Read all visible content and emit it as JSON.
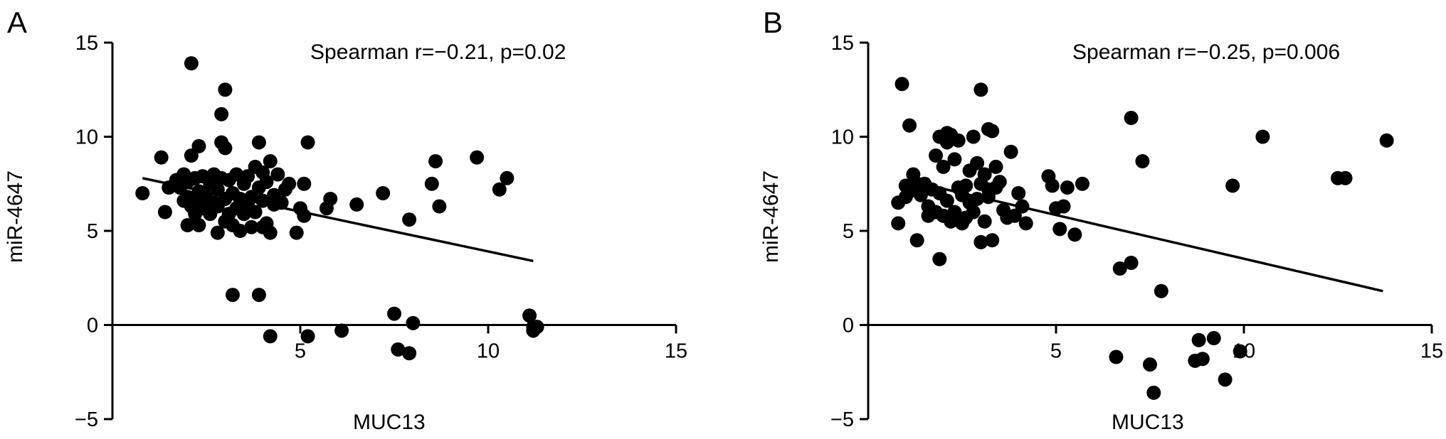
{
  "chart_data": [
    {
      "type": "scatter",
      "panel_label": "A",
      "annotation": "Spearman r=−0.21, p=0.02",
      "xlabel": "MUC13",
      "ylabel": "miR-4647",
      "xlim": [
        0,
        15
      ],
      "ylim": [
        -5,
        15
      ],
      "xticks": [
        5,
        10,
        15
      ],
      "yticks": [
        -5,
        0,
        5,
        10,
        15
      ],
      "xtick_labels": [
        "5",
        "10",
        "15"
      ],
      "ytick_labels": [
        "−5",
        "0",
        "5",
        "10",
        "15"
      ],
      "regression_line": {
        "x": [
          0.8,
          11.2
        ],
        "y": [
          7.8,
          3.4
        ]
      },
      "points": {
        "x": [
          0.8,
          1.3,
          1.4,
          1.5,
          1.7,
          1.8,
          1.9,
          1.9,
          2.0,
          2.0,
          2.0,
          2.1,
          2.1,
          2.2,
          2.2,
          2.2,
          2.3,
          2.3,
          2.3,
          2.4,
          2.4,
          2.5,
          2.5,
          2.6,
          2.6,
          2.7,
          2.7,
          2.8,
          2.8,
          2.8,
          2.9,
          2.9,
          3.0,
          3.0,
          3.0,
          3.1,
          3.1,
          3.2,
          3.2,
          3.3,
          3.3,
          3.4,
          3.4,
          3.5,
          3.5,
          3.6,
          3.6,
          3.7,
          3.7,
          3.8,
          3.8,
          3.9,
          3.9,
          4.0,
          4.0,
          4.0,
          4.1,
          4.1,
          4.2,
          4.2,
          4.3,
          4.3,
          4.4,
          4.5,
          4.6,
          4.7,
          4.9,
          5.0,
          5.1,
          5.1,
          5.2,
          5.7,
          5.8,
          6.5,
          7.2,
          2.1,
          2.9,
          3.0,
          3.2,
          3.9,
          5.2,
          4.2,
          6.1,
          7.5,
          7.6,
          7.9,
          8.0,
          7.9,
          8.5,
          8.6,
          8.7,
          9.7,
          10.3,
          10.5,
          11.1,
          11.2,
          11.3,
          11.2
        ],
        "y": [
          7.0,
          8.9,
          6.0,
          7.3,
          7.7,
          7.3,
          6.6,
          8.0,
          6.8,
          7.6,
          5.3,
          6.3,
          9.0,
          7.8,
          6.5,
          5.9,
          9.5,
          7.1,
          5.3,
          6.2,
          7.9,
          6.8,
          6.5,
          7.5,
          5.9,
          6.5,
          8.0,
          7.2,
          6.3,
          4.9,
          9.7,
          7.8,
          9.4,
          6.7,
          5.5,
          7.7,
          5.9,
          7.0,
          5.3,
          8.0,
          6.2,
          6.7,
          5.0,
          7.5,
          5.9,
          7.9,
          6.4,
          6.8,
          5.2,
          8.4,
          6.0,
          9.7,
          7.3,
          8.1,
          6.6,
          5.2,
          7.6,
          5.4,
          8.7,
          4.9,
          6.9,
          6.4,
          8.0,
          6.5,
          7.2,
          7.5,
          4.9,
          6.2,
          7.5,
          5.8,
          9.7,
          6.2,
          6.7,
          6.4,
          7.0,
          13.9,
          11.2,
          12.5,
          1.6,
          1.6,
          -0.6,
          -0.6,
          -0.3,
          0.6,
          -1.3,
          -1.5,
          0.1,
          5.6,
          7.5,
          8.7,
          6.3,
          8.9,
          7.2,
          7.8,
          0.5,
          -0.1,
          -0.1,
          -0.3
        ]
      }
    },
    {
      "type": "scatter",
      "panel_label": "B",
      "annotation": "Spearman r=−0.25, p=0.006",
      "xlabel": "MUC13",
      "ylabel": "miR-4647",
      "xlim": [
        0,
        15
      ],
      "ylim": [
        -5,
        15
      ],
      "xticks": [
        5,
        10,
        15
      ],
      "yticks": [
        -5,
        0,
        5,
        10,
        15
      ],
      "xtick_labels": [
        "5",
        "10",
        "15"
      ],
      "ytick_labels": [
        "−5",
        "0",
        "5",
        "10",
        "15"
      ],
      "regression_line": {
        "x": [
          1.0,
          13.7
        ],
        "y": [
          7.7,
          1.8
        ]
      },
      "points": {
        "x": [
          0.8,
          0.8,
          1.0,
          1.0,
          1.1,
          1.2,
          1.3,
          1.3,
          1.4,
          1.5,
          1.6,
          1.6,
          1.7,
          1.8,
          1.8,
          1.9,
          1.9,
          2.0,
          2.0,
          2.1,
          2.1,
          2.2,
          2.2,
          2.3,
          2.3,
          2.4,
          2.4,
          2.5,
          2.5,
          2.6,
          2.6,
          2.7,
          2.7,
          2.8,
          2.8,
          2.9,
          2.9,
          3.0,
          3.0,
          3.1,
          3.1,
          3.2,
          3.2,
          3.3,
          3.3,
          3.4,
          3.5,
          3.6,
          3.7,
          3.8,
          3.9,
          4.0,
          4.1,
          4.2,
          4.8,
          4.9,
          5.0,
          5.1,
          5.2,
          5.3,
          5.5,
          5.7,
          0.9,
          1.1,
          1.9,
          2.1,
          3.0,
          3.2,
          3.4,
          7.0,
          7.3,
          6.7,
          7.0,
          7.8,
          10.5,
          9.7,
          12.5,
          12.7,
          13.8,
          6.6,
          7.5,
          7.6,
          8.7,
          8.8,
          8.9,
          9.2,
          9.5,
          9.9
        ],
        "y": [
          6.5,
          5.4,
          7.4,
          6.8,
          7.1,
          8.0,
          7.5,
          4.5,
          6.9,
          7.5,
          6.3,
          5.8,
          7.2,
          9.0,
          6.0,
          10.0,
          7.0,
          8.4,
          5.8,
          9.7,
          6.6,
          10.1,
          5.5,
          8.8,
          6.0,
          9.8,
          7.3,
          6.9,
          5.4,
          7.4,
          5.7,
          8.2,
          6.5,
          10.0,
          6.0,
          8.6,
          6.7,
          7.5,
          4.4,
          8.0,
          5.5,
          6.8,
          7.2,
          10.3,
          4.5,
          8.4,
          7.6,
          6.1,
          5.7,
          9.2,
          5.8,
          7.0,
          6.3,
          5.4,
          7.9,
          7.4,
          6.2,
          5.1,
          6.3,
          7.3,
          4.8,
          7.5,
          12.8,
          10.6,
          3.5,
          10.2,
          12.5,
          10.4,
          7.3,
          11.0,
          8.7,
          3.0,
          3.3,
          1.8,
          10.0,
          7.4,
          7.8,
          7.8,
          9.8,
          -1.7,
          -2.1,
          -3.6,
          -1.9,
          -0.8,
          -1.8,
          -0.7,
          -2.9,
          -1.4
        ]
      }
    }
  ]
}
